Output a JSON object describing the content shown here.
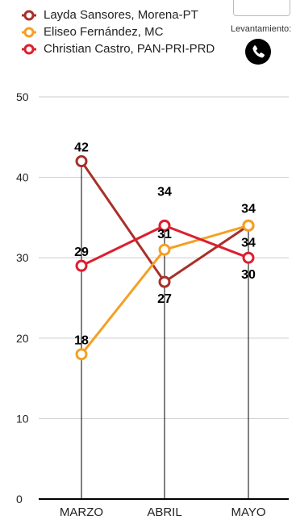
{
  "chart_data": {
    "type": "line",
    "categories": [
      "MARZO",
      "ABRIL",
      "MAYO"
    ],
    "series": [
      {
        "name": "Layda Sansores, Morena-PT",
        "color": "#a8302a",
        "values": [
          42,
          27,
          34
        ]
      },
      {
        "name": "Eliseo Fernández, MC",
        "color": "#f4a024",
        "values": [
          18,
          31,
          34
        ]
      },
      {
        "name": "Christian Castro, PAN-PRI-PRD",
        "color": "#dc1f30",
        "values": [
          29,
          34,
          30
        ]
      }
    ],
    "yticks": [
      0,
      10,
      20,
      30,
      40,
      50
    ],
    "ylim": [
      0,
      50
    ],
    "grid": true,
    "legend_position": "top-left"
  },
  "header": {
    "survey_method_label": "Levantamiento:",
    "survey_method_icon": "phone-icon"
  }
}
